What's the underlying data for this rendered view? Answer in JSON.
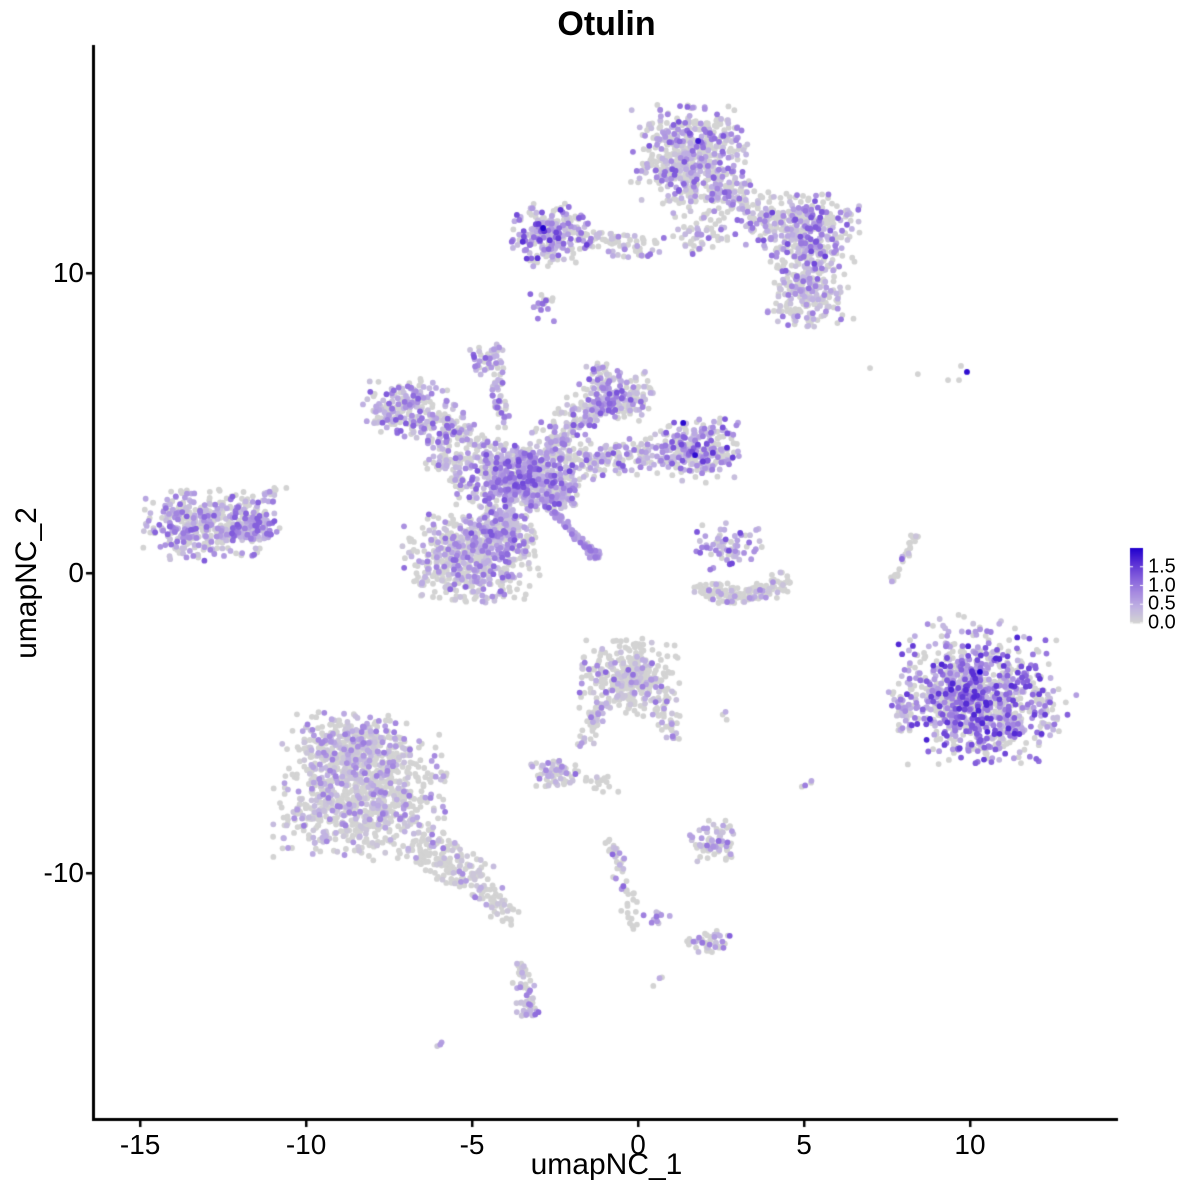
{
  "chart_data": {
    "type": "scatter",
    "title": "Otulin",
    "xlabel": "umapNC_1",
    "ylabel": "umapNC_2",
    "xlim": [
      -16.36,
      14.46
    ],
    "ylim": [
      -18.17,
      17.6
    ],
    "x_ticks": [
      -15,
      -10,
      -5,
      0,
      5,
      10
    ],
    "y_ticks": [
      10,
      0,
      -10
    ],
    "grid": false,
    "legend_position": "right",
    "point_radius": 2.9,
    "color_scale": {
      "limits": [
        0.0,
        2.0
      ],
      "breaks": [
        1.5,
        1.0,
        0.5,
        0.0
      ],
      "break_labels": [
        "1.5",
        "1.0",
        "0.5",
        "0.0"
      ],
      "low": "#D3D3D3",
      "high": "#2101CE",
      "stops": [
        "#D3D3D3",
        "#C0B2E2",
        "#A78BE0",
        "#8560DC",
        "#5A30D5",
        "#2101CE"
      ]
    },
    "clusters": {
      "blobs": [
        {
          "name": "top-main",
          "x": 1.57,
          "y": 13.93,
          "sx": 0.85,
          "sy": 0.8,
          "n": 540,
          "p": 0.45,
          "m": 1.3
        },
        {
          "name": "top-sub",
          "x": 1.87,
          "y": 11.43,
          "sx": 0.45,
          "sy": 0.4,
          "n": 65,
          "p": 0.45,
          "m": 1.2
        },
        {
          "name": "top-right",
          "x": 5.18,
          "y": 11.43,
          "sx": 0.72,
          "sy": 0.62,
          "n": 250,
          "p": 0.55,
          "m": 1.5
        },
        {
          "name": "top-ext-blob",
          "x": 4.88,
          "y": 9.1,
          "sx": 0.58,
          "sy": 0.48,
          "n": 90,
          "p": 0.4,
          "m": 1.1
        },
        {
          "name": "top-left-arm",
          "x": -2.65,
          "y": 11.27,
          "sx": 0.64,
          "sy": 0.5,
          "n": 230,
          "p": 0.62,
          "m": 1.6
        },
        {
          "name": "top-tiny-below",
          "x": -2.86,
          "y": 8.77,
          "sx": 0.21,
          "sy": 0.37,
          "n": 18,
          "p": 0.5,
          "m": 1.2
        },
        {
          "name": "mid-small",
          "x": -4.52,
          "y": 7.1,
          "sx": 0.27,
          "sy": 0.3,
          "n": 45,
          "p": 0.7,
          "m": 1.3
        },
        {
          "name": "ctr-tl-lobe",
          "x": -7.02,
          "y": 5.5,
          "sx": 0.64,
          "sy": 0.48,
          "n": 200,
          "p": 0.55,
          "m": 1.3
        },
        {
          "name": "ctr-tl-sub",
          "x": -5.87,
          "y": 4.93,
          "sx": 0.45,
          "sy": 0.33,
          "n": 85,
          "p": 0.55,
          "m": 1.2
        },
        {
          "name": "ctr-knot",
          "x": -3.4,
          "y": 3.1,
          "sx": 0.8,
          "sy": 0.58,
          "n": 550,
          "p": 0.7,
          "m": 1.4
        },
        {
          "name": "ctr-knot-low",
          "x": -4.16,
          "y": 1.45,
          "sx": 0.5,
          "sy": 0.4,
          "n": 180,
          "p": 0.62,
          "m": 1.3
        },
        {
          "name": "ctr-y-blob",
          "x": -0.6,
          "y": 5.93,
          "sx": 0.54,
          "sy": 0.42,
          "n": 170,
          "p": 0.5,
          "m": 1.3
        },
        {
          "name": "ctr-y-top",
          "x": -1.14,
          "y": 6.7,
          "sx": 0.2,
          "sy": 0.2,
          "n": 20,
          "p": 0.5,
          "m": 1.2
        },
        {
          "name": "ctr-right-blob",
          "x": 1.72,
          "y": 4.1,
          "sx": 0.64,
          "sy": 0.52,
          "n": 270,
          "p": 0.55,
          "m": 1.6
        },
        {
          "name": "ctr-ll-lobe",
          "x": -5.06,
          "y": 0.45,
          "sx": 1.0,
          "sy": 0.72,
          "n": 540,
          "p": 0.44,
          "m": 1.15
        },
        {
          "name": "ctr-mid-fill",
          "x": -2.35,
          "y": 2.5,
          "sx": 0.28,
          "sy": 0.22,
          "n": 50,
          "p": 0.6,
          "m": 1.2
        },
        {
          "name": "comet-end",
          "x": -1.26,
          "y": 0.6,
          "sx": 0.1,
          "sy": 0.08,
          "n": 12,
          "p": 0.95,
          "m": 1.0,
          "vmin": 0.4
        },
        {
          "name": "left-main",
          "x": -13.04,
          "y": 1.6,
          "sx": 0.92,
          "sy": 0.58,
          "n": 420,
          "p": 0.52,
          "m": 1.25
        },
        {
          "name": "left-arrow",
          "x": -11.54,
          "y": 1.53,
          "sx": 0.42,
          "sy": 0.24,
          "n": 110,
          "p": 0.8,
          "m": 1.25
        },
        {
          "name": "crescent-top",
          "x": 2.65,
          "y": 0.9,
          "sx": 0.52,
          "sy": 0.38,
          "n": 70,
          "p": 0.75,
          "m": 1.4
        },
        {
          "name": "right-main",
          "x": 10.28,
          "y": -4.23,
          "sx": 1.16,
          "sy": 1.03,
          "n": 950,
          "p": 0.58,
          "m": 1.7,
          "k": 1.4
        },
        {
          "name": "right-fringe-top",
          "x": 10.1,
          "y": -1.75,
          "sx": 1.0,
          "sy": 0.3,
          "n": 24,
          "p": 0.45,
          "m": 1.2
        },
        {
          "name": "right-fringe-east",
          "x": 12.7,
          "y": -4.4,
          "sx": 0.25,
          "sy": 0.6,
          "n": 12,
          "p": 0.5,
          "m": 1.3
        },
        {
          "name": "right-satellite",
          "x": 7.98,
          "y": -4.37,
          "sx": 0.24,
          "sy": 0.36,
          "n": 38,
          "p": 0.6,
          "m": 1.3
        },
        {
          "name": "bl-main",
          "x": -8.37,
          "y": -7.4,
          "sx": 1.25,
          "sy": 1.05,
          "n": 880,
          "p": 0.33,
          "m": 0.95
        },
        {
          "name": "bl-top",
          "x": -8.61,
          "y": -5.73,
          "sx": 0.88,
          "sy": 0.52,
          "n": 300,
          "p": 0.4,
          "m": 0.95
        },
        {
          "name": "cb-main",
          "x": -0.24,
          "y": -3.5,
          "sx": 0.75,
          "sy": 0.64,
          "n": 340,
          "p": 0.25,
          "m": 1.15
        },
        {
          "name": "cb-pair",
          "x": 2.71,
          "y": -4.77,
          "sx": 0.12,
          "sy": 0.08,
          "n": 3,
          "p": 0.6,
          "m": 1.3
        },
        {
          "name": "cb-small",
          "x": -2.41,
          "y": -6.67,
          "sx": 0.39,
          "sy": 0.27,
          "n": 64,
          "p": 0.55,
          "m": 1.2
        },
        {
          "name": "cb-gray",
          "x": -1.11,
          "y": -6.93,
          "sx": 0.3,
          "sy": 0.18,
          "n": 16,
          "p": 0.05,
          "m": 0.8
        },
        {
          "name": "cb-pair2",
          "x": 5.06,
          "y": -7.1,
          "sx": 0.14,
          "sy": 0.1,
          "n": 4,
          "p": 0.3,
          "m": 1.0
        },
        {
          "name": "sb-blob",
          "x": 2.32,
          "y": -8.9,
          "sx": 0.36,
          "sy": 0.34,
          "n": 75,
          "p": 0.45,
          "m": 1.2
        },
        {
          "name": "sb-dots",
          "x": 0.6,
          "y": -11.47,
          "sx": 0.24,
          "sy": 0.12,
          "n": 12,
          "p": 0.7,
          "m": 1.2
        },
        {
          "name": "sb-br",
          "x": 2.23,
          "y": -12.27,
          "sx": 0.39,
          "sy": 0.21,
          "n": 46,
          "p": 0.5,
          "m": 1.4
        },
        {
          "name": "sb-pair",
          "x": 0.63,
          "y": -13.63,
          "sx": 0.1,
          "sy": 0.12,
          "n": 3,
          "p": 0.4,
          "m": 1.0
        },
        {
          "name": "sb-clump",
          "x": -3.28,
          "y": -14.57,
          "sx": 0.21,
          "sy": 0.15,
          "n": 18,
          "p": 0.8,
          "m": 1.1
        },
        {
          "name": "sb-pair2",
          "x": -5.96,
          "y": -15.67,
          "sx": 0.1,
          "sy": 0.08,
          "n": 3,
          "p": 0.5,
          "m": 0.9
        },
        {
          "name": "sb-graypair",
          "x": -3.89,
          "y": -11.6,
          "sx": 0.1,
          "sy": 0.1,
          "n": 3,
          "p": 0.1,
          "m": 0.8
        }
      ],
      "streaks": [
        {
          "name": "top-arm",
          "x1": 2.32,
          "y1": 12.93,
          "x2": 4.88,
          "y2": 11.1,
          "w": 0.42,
          "n": 175,
          "p": 0.5,
          "m": 1.2
        },
        {
          "name": "top-ext",
          "x1": 4.58,
          "y1": 10.6,
          "x2": 5.78,
          "y2": 9.1,
          "w": 0.5,
          "n": 165,
          "p": 0.45,
          "m": 1.2
        },
        {
          "name": "top-bridge",
          "x1": -1.9,
          "y1": 11.1,
          "x2": 0.51,
          "y2": 10.87,
          "w": 0.22,
          "n": 75,
          "p": 0.4,
          "m": 1.1
        },
        {
          "name": "mid-strand",
          "x1": -4.25,
          "y1": 6.5,
          "x2": -4.01,
          "y2": 4.93,
          "w": 0.12,
          "n": 40,
          "p": 0.7,
          "m": 1.2
        },
        {
          "name": "ctr-arm",
          "x1": -5.66,
          "y1": 4.37,
          "x2": -3.55,
          "y2": 3.5,
          "w": 0.34,
          "n": 130,
          "p": 0.6,
          "m": 1.3
        },
        {
          "name": "ctr-branch",
          "x1": -6.2,
          "y1": 4.17,
          "x2": -5.0,
          "y2": 2.7,
          "w": 0.28,
          "n": 70,
          "p": 0.5,
          "m": 1.2
        },
        {
          "name": "ctr-upper-arm",
          "x1": -2.8,
          "y1": 4.1,
          "x2": -1.2,
          "y2": 5.83,
          "w": 0.34,
          "n": 160,
          "p": 0.5,
          "m": 1.3
        },
        {
          "name": "ctr-right-branch",
          "x1": -2.2,
          "y1": 3.55,
          "x2": 0.6,
          "y2": 4.0,
          "w": 0.3,
          "n": 175,
          "p": 0.5,
          "m": 1.3
        },
        {
          "name": "ctr-comet",
          "x1": -2.55,
          "y1": 2.05,
          "x2": -1.2,
          "y2": 0.5,
          "w": 0.055,
          "n": 72,
          "p": 0.95,
          "m": 1.05,
          "vmin": 0.42
        },
        {
          "name": "left-tail",
          "x1": -11.33,
          "y1": 2.43,
          "x2": -10.66,
          "y2": 2.87,
          "w": 0.15,
          "n": 15,
          "p": 0.6,
          "m": 1.1
        },
        {
          "name": "crescent-1",
          "x1": 1.87,
          "y1": -0.47,
          "x2": 3.19,
          "y2": -0.87,
          "w": 0.17,
          "n": 85,
          "p": 0.12,
          "m": 0.9
        },
        {
          "name": "crescent-2",
          "x1": 3.19,
          "y1": -0.87,
          "x2": 4.49,
          "y2": -0.23,
          "w": 0.17,
          "n": 70,
          "p": 0.15,
          "m": 0.9
        },
        {
          "name": "arc-1",
          "x1": 8.31,
          "y1": 1.3,
          "x2": 8.07,
          "y2": 0.57,
          "w": 0.08,
          "n": 15,
          "p": 0.15,
          "m": 1.2
        },
        {
          "name": "arc-2",
          "x1": 8.07,
          "y1": 0.57,
          "x2": 7.62,
          "y2": -0.23,
          "w": 0.08,
          "n": 13,
          "p": 0.2,
          "m": 1.2
        },
        {
          "name": "bl-tail",
          "x1": -6.57,
          "y1": -9.17,
          "x2": -4.82,
          "y2": -10.17,
          "w": 0.4,
          "n": 130,
          "p": 0.25,
          "m": 0.9
        },
        {
          "name": "bl-tail2",
          "x1": -4.82,
          "y1": -10.17,
          "x2": -3.98,
          "y2": -11.5,
          "w": 0.19,
          "n": 48,
          "p": 0.2,
          "m": 0.9
        },
        {
          "name": "cb-left-tail",
          "x1": -1.11,
          "y1": -4.3,
          "x2": -1.66,
          "y2": -5.83,
          "w": 0.15,
          "n": 42,
          "p": 0.6,
          "m": 1.1
        },
        {
          "name": "cb-right-tail",
          "x1": 0.57,
          "y1": -4.23,
          "x2": 1.14,
          "y2": -5.43,
          "w": 0.18,
          "n": 40,
          "p": 0.45,
          "m": 1.1
        },
        {
          "name": "sb-strand",
          "x1": -0.78,
          "y1": -8.9,
          "x2": -0.12,
          "y2": -11.83,
          "w": 0.13,
          "n": 48,
          "p": 0.3,
          "m": 1.2
        },
        {
          "name": "sb-strand2",
          "x1": -3.52,
          "y1": -13.1,
          "x2": -3.28,
          "y2": -14.83,
          "w": 0.17,
          "n": 40,
          "p": 0.45,
          "m": 1.0
        }
      ],
      "singles": [
        {
          "x": 6.99,
          "y": 6.83,
          "v": 0
        },
        {
          "x": 8.43,
          "y": 6.63,
          "v": 0
        },
        {
          "x": 9.34,
          "y": 6.43,
          "v": 0
        },
        {
          "x": 9.73,
          "y": 6.9,
          "v": 0
        },
        {
          "x": 9.67,
          "y": 6.43,
          "v": 0
        },
        {
          "x": 9.91,
          "y": 6.7,
          "v": 1.9
        },
        {
          "x": -2.86,
          "y": 11.5,
          "v": 2.0
        },
        {
          "x": 1.36,
          "y": 5.0,
          "v": 1.95
        },
        {
          "x": 1.72,
          "y": 3.93,
          "v": 1.9
        },
        {
          "x": 1.81,
          "y": 14.4,
          "v": 1.8
        },
        {
          "x": 10.3,
          "y": -3.3,
          "v": 2.0
        }
      ]
    }
  }
}
